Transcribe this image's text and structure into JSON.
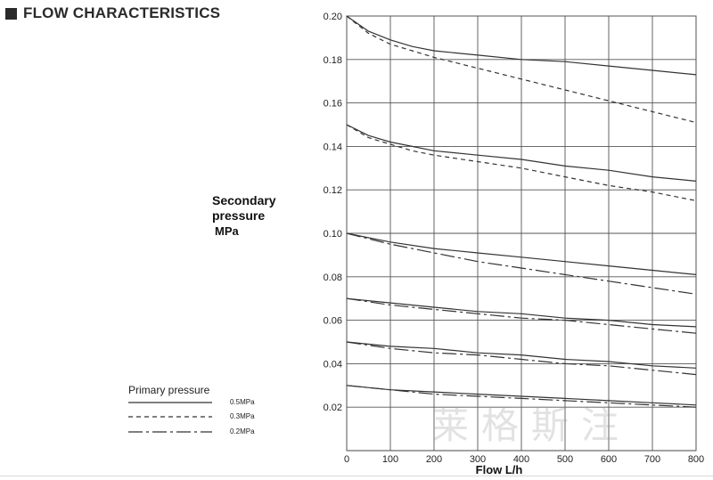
{
  "header": {
    "title": "FLOW CHARACTERISTICS"
  },
  "watermark": "莱格斯注",
  "chart_data": {
    "type": "line",
    "title": "",
    "xlabel": "Flow  L/h",
    "ylabel_lines": [
      "Secondary",
      "pressure",
      "MPa"
    ],
    "xlim": [
      0,
      800
    ],
    "ylim": [
      0,
      0.2
    ],
    "x_ticks": [
      "0",
      "100",
      "200",
      "300",
      "400",
      "500",
      "600",
      "700",
      "800"
    ],
    "y_ticks": [
      "0.02",
      "0.04",
      "0.06",
      "0.08",
      "0.10",
      "0.12",
      "0.14",
      "0.16",
      "0.18",
      "0.20"
    ],
    "grid": true,
    "legend": {
      "title": "Primary pressure",
      "placement": "bottom-left",
      "entries": [
        {
          "label": "0.5MPa",
          "style": "solid"
        },
        {
          "label": "0.3MPa",
          "style": "dashed"
        },
        {
          "label": "0.2MPa",
          "style": "dash-dot"
        }
      ]
    },
    "series": [
      {
        "set_pressure": 0.2,
        "primary": "0.5MPa",
        "style": "solid",
        "x": [
          0,
          50,
          100,
          150,
          200,
          300,
          400,
          500,
          600,
          700,
          800
        ],
        "y": [
          0.2,
          0.193,
          0.189,
          0.186,
          0.184,
          0.182,
          0.18,
          0.179,
          0.177,
          0.175,
          0.173
        ]
      },
      {
        "set_pressure": 0.2,
        "primary": "0.3MPa",
        "style": "dashed",
        "x": [
          0,
          50,
          100,
          150,
          200,
          300,
          400,
          500,
          600,
          700,
          800
        ],
        "y": [
          0.2,
          0.192,
          0.187,
          0.184,
          0.181,
          0.176,
          0.171,
          0.166,
          0.161,
          0.156,
          0.151
        ]
      },
      {
        "set_pressure": 0.15,
        "primary": "0.5MPa",
        "style": "solid",
        "x": [
          0,
          50,
          100,
          150,
          200,
          300,
          400,
          500,
          600,
          700,
          800
        ],
        "y": [
          0.15,
          0.145,
          0.142,
          0.14,
          0.138,
          0.136,
          0.134,
          0.131,
          0.129,
          0.126,
          0.124
        ]
      },
      {
        "set_pressure": 0.15,
        "primary": "0.3MPa",
        "style": "dashed",
        "x": [
          0,
          50,
          100,
          150,
          200,
          300,
          400,
          500,
          600,
          700,
          800
        ],
        "y": [
          0.15,
          0.144,
          0.141,
          0.138,
          0.136,
          0.133,
          0.13,
          0.126,
          0.122,
          0.119,
          0.115
        ]
      },
      {
        "set_pressure": 0.1,
        "primary": "0.5MPa",
        "style": "solid",
        "x": [
          0,
          100,
          200,
          300,
          400,
          500,
          600,
          700,
          800
        ],
        "y": [
          0.1,
          0.096,
          0.093,
          0.091,
          0.089,
          0.087,
          0.085,
          0.083,
          0.081
        ]
      },
      {
        "set_pressure": 0.1,
        "primary": "0.2MPa",
        "style": "dashdot",
        "x": [
          0,
          100,
          200,
          300,
          400,
          500,
          600,
          700,
          800
        ],
        "y": [
          0.1,
          0.095,
          0.091,
          0.087,
          0.084,
          0.081,
          0.078,
          0.075,
          0.072
        ]
      },
      {
        "set_pressure": 0.07,
        "primary": "0.5MPa",
        "style": "solid",
        "x": [
          0,
          100,
          200,
          300,
          400,
          500,
          600,
          700,
          800
        ],
        "y": [
          0.07,
          0.068,
          0.066,
          0.064,
          0.063,
          0.061,
          0.06,
          0.058,
          0.057
        ]
      },
      {
        "set_pressure": 0.07,
        "primary": "0.2MPa",
        "style": "dashdot",
        "x": [
          0,
          100,
          200,
          300,
          400,
          500,
          600,
          700,
          800
        ],
        "y": [
          0.07,
          0.067,
          0.065,
          0.063,
          0.061,
          0.06,
          0.058,
          0.056,
          0.054
        ]
      },
      {
        "set_pressure": 0.05,
        "primary": "0.5MPa",
        "style": "solid",
        "x": [
          0,
          100,
          200,
          300,
          400,
          500,
          600,
          700,
          800
        ],
        "y": [
          0.05,
          0.048,
          0.047,
          0.045,
          0.044,
          0.042,
          0.041,
          0.039,
          0.038
        ]
      },
      {
        "set_pressure": 0.05,
        "primary": "0.2MPa",
        "style": "dashdot",
        "x": [
          0,
          100,
          200,
          300,
          400,
          500,
          600,
          700,
          800
        ],
        "y": [
          0.05,
          0.047,
          0.045,
          0.044,
          0.042,
          0.04,
          0.039,
          0.037,
          0.035
        ]
      },
      {
        "set_pressure": 0.03,
        "primary": "0.5MPa",
        "style": "solid",
        "x": [
          0,
          100,
          200,
          300,
          400,
          500,
          600,
          700,
          800
        ],
        "y": [
          0.03,
          0.028,
          0.027,
          0.026,
          0.025,
          0.024,
          0.023,
          0.022,
          0.021
        ]
      },
      {
        "set_pressure": 0.03,
        "primary": "0.2MPa",
        "style": "dashdot",
        "x": [
          0,
          100,
          200,
          300,
          400,
          500,
          600,
          700,
          800
        ],
        "y": [
          0.03,
          0.028,
          0.026,
          0.025,
          0.024,
          0.023,
          0.022,
          0.021,
          0.02
        ]
      }
    ]
  }
}
